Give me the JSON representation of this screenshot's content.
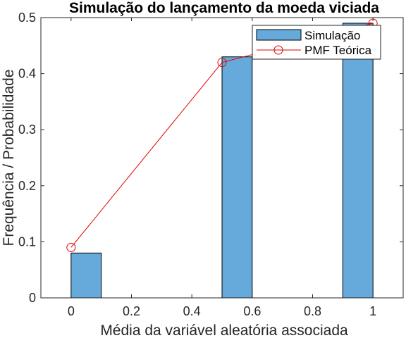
{
  "chart_data": {
    "type": "bar",
    "title": "Simulação do lançamento da moeda viciada",
    "xlabel": "Média da variável aleatória associada",
    "ylabel": "Frequência / Probabilidade",
    "xlim": [
      -0.1,
      1.1
    ],
    "ylim": [
      0,
      0.5
    ],
    "xticks": [
      0,
      0.2,
      0.4,
      0.6,
      0.8,
      1
    ],
    "xtick_labels": [
      "0",
      "0.2",
      "0.4",
      "0.6",
      "0.8",
      "1"
    ],
    "yticks": [
      0,
      0.1,
      0.2,
      0.3,
      0.4,
      0.5
    ],
    "ytick_labels": [
      "0",
      "0.1",
      "0.2",
      "0.3",
      "0.4",
      "0.5"
    ],
    "grid": false,
    "legend_position": "top-right",
    "series": [
      {
        "name": "Simulação",
        "type": "histogram",
        "color": "#66aadc",
        "edge_color": "#000000",
        "bins": [
          {
            "x0": 0.0,
            "x1": 0.1,
            "value": 0.08
          },
          {
            "x0": 0.5,
            "x1": 0.6,
            "value": 0.43
          },
          {
            "x0": 0.9,
            "x1": 1.0,
            "value": 0.49
          }
        ]
      },
      {
        "name": "PMF Teórica",
        "type": "line",
        "color": "#e00000",
        "marker": "circle",
        "x": [
          0,
          0.5,
          1
        ],
        "y": [
          0.09,
          0.42,
          0.49
        ]
      }
    ]
  }
}
